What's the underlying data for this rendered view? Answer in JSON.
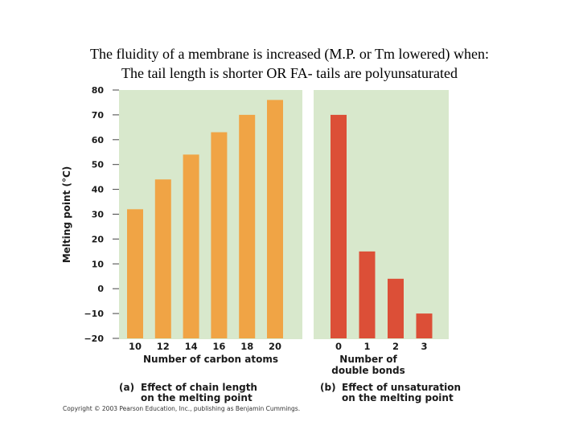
{
  "heading": {
    "line1": "The fluidity of a membrane is increased (M.P. or Tm lowered) when:",
    "line2": "The tail length is shorter OR FA- tails are polyunsaturated"
  },
  "colors": {
    "panel_bg": "#d8e8cc",
    "bar_a": "#f0a445",
    "bar_b": "#dc4f37"
  },
  "chart_data": [
    {
      "type": "bar",
      "panel_label": "(a)",
      "caption_line1": "Effect of chain length",
      "caption_line2": "on the melting point",
      "categories": [
        "10",
        "12",
        "14",
        "16",
        "18",
        "20"
      ],
      "values": [
        32,
        44,
        54,
        63,
        70,
        76
      ],
      "xlabel": "Number of carbon atoms",
      "ylabel": "Melting point (°C)",
      "ylim": [
        -20,
        80
      ],
      "yticks": [
        "80",
        "70",
        "60",
        "50",
        "40",
        "30",
        "20",
        "10",
        "0",
        "−10",
        "−20"
      ],
      "grid": false
    },
    {
      "type": "bar",
      "panel_label": "(b)",
      "caption_line1": "Effect of unsaturation",
      "caption_line2": "on the melting point",
      "categories": [
        "0",
        "1",
        "2",
        "3"
      ],
      "values": [
        70,
        15,
        4,
        -10
      ],
      "xlabel_line1": "Number of",
      "xlabel_line2": "double bonds",
      "ylim": [
        -20,
        80
      ],
      "grid": false
    }
  ],
  "copyright": "Copyright © 2003 Pearson Education, Inc., publishing as Benjamin Cummings."
}
